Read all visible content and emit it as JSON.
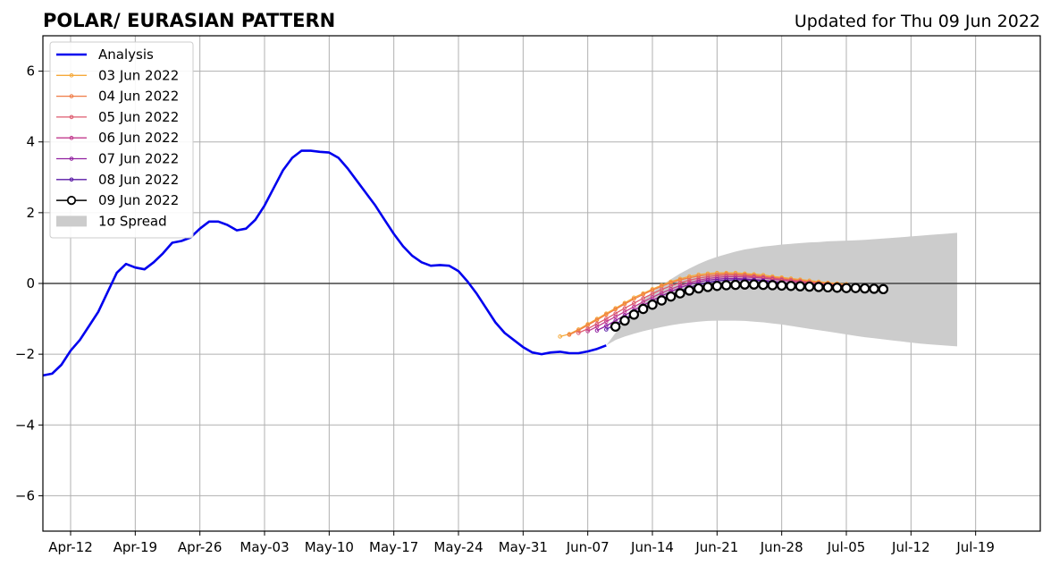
{
  "chart_data": {
    "type": "line",
    "title": "POLAR/ EURASIAN  PATTERN",
    "subtitle": "Updated for Thu 09 Jun 2022",
    "xlim": [
      "2022-04-09",
      "2022-07-26"
    ],
    "ylim": [
      -7,
      7
    ],
    "grid": true,
    "legend_position": "top-left",
    "x_ticks": [
      "Apr-12",
      "Apr-19",
      "Apr-26",
      "May-03",
      "May-10",
      "May-17",
      "May-24",
      "May-31",
      "Jun-07",
      "Jun-14",
      "Jun-21",
      "Jun-28",
      "Jul-05",
      "Jul-12",
      "Jul-19"
    ],
    "y_ticks": [
      "6",
      "4",
      "2",
      "0",
      "−2",
      "−4",
      "−6"
    ],
    "y_tick_values": [
      6,
      4,
      2,
      0,
      -2,
      -4,
      -6
    ],
    "analysis": {
      "name": "Analysis",
      "color": "#0000ee",
      "start": "2022-04-09",
      "values": [
        -2.6,
        -2.55,
        -2.3,
        -1.9,
        -1.6,
        -1.2,
        -0.8,
        -0.25,
        0.3,
        0.55,
        0.45,
        0.4,
        0.6,
        0.85,
        1.15,
        1.2,
        1.3,
        1.55,
        1.75,
        1.75,
        1.65,
        1.5,
        1.55,
        1.8,
        2.2,
        2.7,
        3.2,
        3.55,
        3.75,
        3.75,
        3.72,
        3.7,
        3.55,
        3.25,
        2.9,
        2.55,
        2.2,
        1.8,
        1.4,
        1.05,
        0.78,
        0.6,
        0.5,
        0.52,
        0.5,
        0.35,
        0.05,
        -0.3,
        -0.7,
        -1.1,
        -1.4,
        -1.6,
        -1.8,
        -1.95,
        -2.0,
        -1.95,
        -1.93,
        -1.97,
        -1.97,
        -1.92,
        -1.85,
        -1.75
      ]
    },
    "forecasts": [
      {
        "name": "03 Jun 2022",
        "color": "#f5a93a",
        "start": "2022-06-04",
        "values": [
          -1.5,
          -1.43,
          -1.3,
          -1.15,
          -1.0,
          -0.85,
          -0.7,
          -0.55,
          -0.4,
          -0.28,
          -0.16,
          -0.05,
          0.05,
          0.13,
          0.2,
          0.25,
          0.28,
          0.3,
          0.3,
          0.3,
          0.28,
          0.26,
          0.24,
          0.2,
          0.17,
          0.14,
          0.11,
          0.08,
          0.05,
          0.02,
          0.0,
          -0.02
        ]
      },
      {
        "name": "04 Jun 2022",
        "color": "#f07b45",
        "start": "2022-06-05",
        "values": [
          -1.45,
          -1.33,
          -1.18,
          -1.03,
          -0.88,
          -0.73,
          -0.58,
          -0.44,
          -0.31,
          -0.19,
          -0.08,
          0.02,
          0.1,
          0.16,
          0.21,
          0.24,
          0.26,
          0.27,
          0.26,
          0.25,
          0.23,
          0.2,
          0.17,
          0.14,
          0.11,
          0.08,
          0.05,
          0.02,
          0.0,
          -0.02,
          -0.04
        ]
      },
      {
        "name": "05 Jun 2022",
        "color": "#dd5a6e",
        "start": "2022-06-06",
        "values": [
          -1.4,
          -1.28,
          -1.14,
          -1.0,
          -0.85,
          -0.7,
          -0.56,
          -0.42,
          -0.29,
          -0.17,
          -0.07,
          0.02,
          0.09,
          0.15,
          0.19,
          0.22,
          0.23,
          0.23,
          0.22,
          0.2,
          0.18,
          0.15,
          0.12,
          0.09,
          0.06,
          0.03,
          0.0,
          -0.02,
          -0.04,
          -0.06
        ]
      },
      {
        "name": "06 Jun 2022",
        "color": "#c23b8e",
        "start": "2022-06-07",
        "values": [
          -1.35,
          -1.22,
          -1.08,
          -0.94,
          -0.8,
          -0.66,
          -0.52,
          -0.39,
          -0.27,
          -0.16,
          -0.06,
          0.02,
          0.09,
          0.14,
          0.17,
          0.19,
          0.19,
          0.18,
          0.17,
          0.15,
          0.12,
          0.09,
          0.06,
          0.03,
          0.0,
          -0.02,
          -0.04,
          -0.06,
          -0.08
        ]
      },
      {
        "name": "07 Jun 2022",
        "color": "#9120a0",
        "start": "2022-06-08",
        "values": [
          -1.33,
          -1.2,
          -1.05,
          -0.9,
          -0.76,
          -0.62,
          -0.48,
          -0.35,
          -0.23,
          -0.12,
          -0.03,
          0.04,
          0.09,
          0.12,
          0.14,
          0.14,
          0.13,
          0.11,
          0.09,
          0.06,
          0.03,
          0.0,
          -0.02,
          -0.04,
          -0.06,
          -0.08,
          -0.1,
          -0.12
        ]
      },
      {
        "name": "08 Jun 2022",
        "color": "#5a1aa6",
        "start": "2022-06-09",
        "values": [
          -1.3,
          -1.15,
          -1.0,
          -0.85,
          -0.71,
          -0.57,
          -0.44,
          -0.32,
          -0.21,
          -0.11,
          -0.03,
          0.03,
          0.07,
          0.09,
          0.1,
          0.1,
          0.09,
          0.07,
          0.04,
          0.01,
          -0.02,
          -0.05,
          -0.07,
          -0.09,
          -0.11,
          -0.13,
          -0.14
        ]
      }
    ],
    "current_forecast": {
      "name": "09 Jun 2022",
      "color": "#000000",
      "start": "2022-06-10",
      "values": [
        -1.22,
        -1.05,
        -0.88,
        -0.72,
        -0.6,
        -0.48,
        -0.37,
        -0.28,
        -0.2,
        -0.14,
        -0.1,
        -0.07,
        -0.05,
        -0.04,
        -0.03,
        -0.03,
        -0.04,
        -0.05,
        -0.06,
        -0.07,
        -0.08,
        -0.09,
        -0.1,
        -0.11,
        -0.12,
        -0.13,
        -0.13,
        -0.14,
        -0.15,
        -0.16
      ]
    },
    "spread": {
      "name": "1σ Spread",
      "color": "#cccccc",
      "start": "2022-06-09",
      "upper": [
        -1.75,
        -1.4,
        -1.05,
        -0.75,
        -0.48,
        -0.25,
        -0.05,
        0.12,
        0.28,
        0.42,
        0.55,
        0.66,
        0.75,
        0.83,
        0.9,
        0.96,
        1.0,
        1.04,
        1.07,
        1.1,
        1.12,
        1.14,
        1.16,
        1.17,
        1.19,
        1.2,
        1.21,
        1.22,
        1.23,
        1.25,
        1.27,
        1.29,
        1.31,
        1.33,
        1.35,
        1.37,
        1.39,
        1.41,
        1.43
      ],
      "lower": [
        -1.75,
        -1.6,
        -1.5,
        -1.42,
        -1.35,
        -1.29,
        -1.23,
        -1.18,
        -1.14,
        -1.11,
        -1.08,
        -1.06,
        -1.05,
        -1.05,
        -1.05,
        -1.06,
        -1.08,
        -1.1,
        -1.13,
        -1.16,
        -1.2,
        -1.24,
        -1.28,
        -1.32,
        -1.36,
        -1.4,
        -1.44,
        -1.48,
        -1.52,
        -1.55,
        -1.58,
        -1.61,
        -1.64,
        -1.67,
        -1.7,
        -1.72,
        -1.74,
        -1.76,
        -1.78
      ]
    }
  }
}
